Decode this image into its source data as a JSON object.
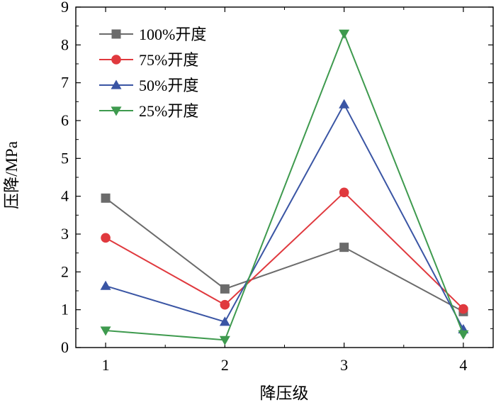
{
  "chart_data": {
    "type": "line",
    "title": "",
    "xlabel": "降压级",
    "ylabel": "压降/MPa",
    "x": [
      1,
      2,
      3,
      4
    ],
    "xticks": [
      "1",
      "2",
      "3",
      "4"
    ],
    "xlim": [
      0.75,
      4.25
    ],
    "ylim": [
      0,
      9
    ],
    "yticks": [
      "0",
      "1",
      "2",
      "3",
      "4",
      "5",
      "6",
      "7",
      "8",
      "9"
    ],
    "grid": false,
    "legend_position": "top-left",
    "series": [
      {
        "name": "100%开度",
        "color": "#6b6b6b",
        "marker": "square",
        "values": [
          3.95,
          1.55,
          2.65,
          0.95
        ]
      },
      {
        "name": "75%开度",
        "color": "#e0393e",
        "marker": "circle",
        "values": [
          2.9,
          1.13,
          4.1,
          1.02
        ]
      },
      {
        "name": "50%开度",
        "color": "#3a55a4",
        "marker": "triangle-up",
        "values": [
          1.63,
          0.68,
          6.43,
          0.48
        ]
      },
      {
        "name": "25%开度",
        "color": "#3e9a4e",
        "marker": "triangle-down",
        "values": [
          0.45,
          0.2,
          8.3,
          0.35
        ]
      }
    ]
  }
}
